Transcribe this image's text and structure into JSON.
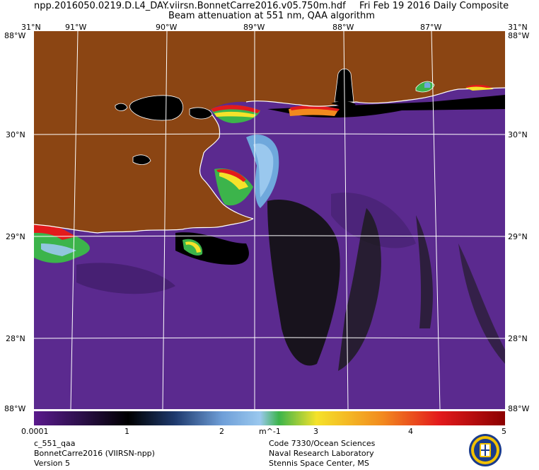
{
  "header": {
    "file": "npp.2016050.0219.D.L4_DAY.viirsn.BonnetCarre2016.v05.750m.hdf",
    "date": "Fri Feb 19 2016 Daily Composite",
    "product": "Beam attenuation at 551 nm, QAA algorithm"
  },
  "longitude_labels": [
    "91°W",
    "90°W",
    "89°W",
    "88°W",
    "87°W"
  ],
  "corner_labels": {
    "top_left": "31°N",
    "top_left_lon": "88°W",
    "top_right": "31°N",
    "top_right_lon": "88°W",
    "bottom_left": "88°W",
    "bottom_right": "88°W"
  },
  "latitude_labels_left": [
    "30°N",
    "29°N",
    "28°N"
  ],
  "latitude_labels_right": [
    "30°N",
    "29°N",
    "28°N"
  ],
  "colorbar": {
    "ticks": [
      "0.0001",
      "1",
      "2",
      "m^-1",
      "3",
      "4",
      "5"
    ],
    "colors": [
      "#5a1a8c",
      "#2c0f4a",
      "#000000",
      "#1e3a6e",
      "#9ac8ee",
      "#3cb44b",
      "#f5e22a",
      "#f28a1e",
      "#e31a1c",
      "#8b0000"
    ]
  },
  "colors": {
    "land": "#8b4513",
    "water_low": "#5b2a8f",
    "turbid": "#000000",
    "grid": "#ffffff"
  },
  "footer": {
    "left": [
      "c_551_qaa",
      "BonnetCarre2016 (VIIRSN-npp)",
      "Version 5"
    ],
    "right": [
      "Code 7330/Ocean Sciences",
      "Naval Research Laboratory",
      "Stennis Space Center, MS"
    ]
  }
}
